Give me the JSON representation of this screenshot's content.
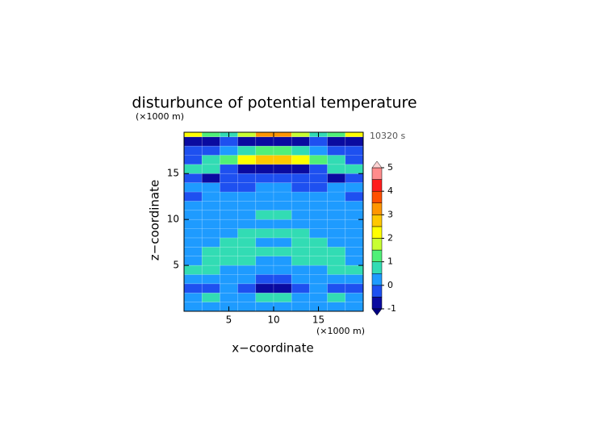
{
  "chart_data": {
    "type": "contour",
    "title": "disturbunce of potential temperature",
    "y_unit": "(×1000 m)",
    "x_unit": "(×1000 m)",
    "time_label": "10320 s",
    "xlabel": "x−coordinate",
    "ylabel": "z−coordinate",
    "xbins": [
      0,
      2,
      4,
      6,
      8,
      10,
      12,
      14,
      16,
      18,
      20
    ],
    "ybins": [
      0,
      1,
      2,
      3,
      4,
      5,
      6,
      7,
      8,
      9,
      10,
      11,
      12,
      13,
      14,
      15,
      16,
      17,
      18,
      19,
      19.5
    ],
    "values": [
      [
        0.2,
        0.2,
        0.2,
        0.2,
        0.2,
        0.2,
        0.2,
        0.2,
        0.2,
        0.2
      ],
      [
        0.3,
        0.6,
        0.2,
        0.2,
        0.6,
        0.6,
        0.2,
        0.2,
        0.6,
        0.3
      ],
      [
        -0.3,
        -0.3,
        0.2,
        -0.3,
        -0.7,
        -0.7,
        -0.3,
        0.2,
        -0.3,
        -0.3
      ],
      [
        0.2,
        0.2,
        0.2,
        0.2,
        -0.3,
        -0.3,
        0.2,
        0.2,
        0.2,
        0.2
      ],
      [
        0.6,
        0.7,
        0.3,
        0.2,
        0.2,
        0.2,
        0.2,
        0.3,
        0.7,
        0.6
      ],
      [
        0.2,
        0.7,
        0.8,
        0.7,
        0.3,
        0.3,
        0.7,
        0.8,
        0.7,
        0.2
      ],
      [
        0.3,
        0.7,
        0.8,
        0.8,
        0.6,
        0.6,
        0.8,
        0.8,
        0.7,
        0.3
      ],
      [
        0.2,
        0.2,
        0.6,
        0.7,
        0.3,
        0.3,
        0.7,
        0.6,
        0.2,
        0.2
      ],
      [
        0.2,
        0.2,
        0.3,
        0.7,
        0.6,
        0.6,
        0.7,
        0.3,
        0.2,
        0.2
      ],
      [
        0.2,
        0.2,
        0.2,
        0.2,
        0.2,
        0.2,
        0.2,
        0.2,
        0.2,
        0.2
      ],
      [
        0.2,
        0.2,
        0.2,
        0.2,
        0.6,
        0.6,
        0.2,
        0.2,
        0.2,
        0.2
      ],
      [
        0.2,
        0.2,
        0.2,
        0.2,
        0.2,
        0.2,
        0.2,
        0.2,
        0.2,
        0.2
      ],
      [
        -0.3,
        0.2,
        0.2,
        0.2,
        0.2,
        0.2,
        0.2,
        0.2,
        0.2,
        -0.3
      ],
      [
        0.2,
        0.2,
        -0.3,
        -0.3,
        0.2,
        0.2,
        -0.3,
        -0.3,
        0.2,
        0.2
      ],
      [
        -0.3,
        -0.7,
        -0.3,
        -0.3,
        -0.3,
        -0.3,
        -0.3,
        -0.3,
        -0.7,
        -0.3
      ],
      [
        0.6,
        0.6,
        -0.3,
        -0.7,
        -0.7,
        -0.7,
        -0.7,
        -0.3,
        0.6,
        0.6
      ],
      [
        -0.3,
        0.6,
        1.2,
        2.2,
        2.6,
        2.6,
        2.2,
        1.2,
        0.6,
        -0.3
      ],
      [
        -0.3,
        -0.3,
        0.3,
        0.7,
        1.3,
        1.3,
        0.7,
        0.3,
        -0.3,
        -0.3
      ],
      [
        -0.7,
        -0.7,
        -0.3,
        -0.7,
        -0.7,
        -0.7,
        -0.7,
        -0.3,
        -0.7,
        -0.7
      ],
      [
        2.2,
        1.3,
        0.6,
        1.8,
        3.2,
        3.2,
        1.8,
        0.6,
        1.3,
        2.2
      ]
    ],
    "xlim": [
      0,
      20
    ],
    "ylim": [
      0,
      19.5
    ],
    "xticks": [
      5,
      10,
      15
    ],
    "yticks": [
      5,
      10,
      15
    ],
    "levels": [
      -1,
      -0.5,
      0,
      0.5,
      1,
      1.5,
      2,
      2.5,
      3,
      3.5,
      4,
      4.5,
      5
    ],
    "colors": [
      "#0a0aa0",
      "#1e50f0",
      "#1e9bff",
      "#32dcb4",
      "#50f078",
      "#c8ff32",
      "#ffff00",
      "#ffc800",
      "#ff9600",
      "#ff5000",
      "#ff1e1e",
      "#ff8c8c"
    ],
    "under_color": "#000080",
    "over_color": "#ffd2d2",
    "cbticks": [
      -1,
      0,
      1,
      2,
      3,
      4,
      5
    ]
  }
}
